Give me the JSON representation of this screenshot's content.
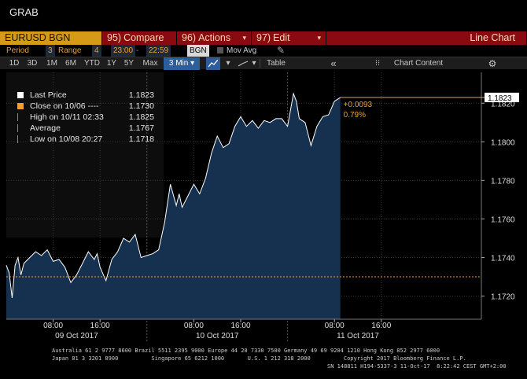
{
  "window": {
    "title": "GRAB"
  },
  "menubar": {
    "ticker": "EURUSD BGN Curncy",
    "compare": {
      "num": "95)",
      "label": "Compare"
    },
    "actions": {
      "num": "96)",
      "label": "Actions"
    },
    "edit": {
      "num": "97)",
      "label": "Edit"
    },
    "chart_type": "Line Chart"
  },
  "period_bar": {
    "period_label": "Period",
    "period_value": "3",
    "range_label": "Range",
    "range_value": "4",
    "start_time": "23:00",
    "end_time": "22:59",
    "source": "BGN",
    "mov_avg_label": "Mov Avg"
  },
  "toolbar": {
    "buttons": [
      "1D",
      "3D",
      "1M",
      "6M",
      "YTD",
      "1Y",
      "5Y",
      "Max"
    ],
    "interval": "3 Min",
    "table_label": "Table",
    "chart_content_label": "Chart Content",
    "collapse_glyph": "«",
    "gear_glyph": "⚙"
  },
  "legend": [
    {
      "label": "Last Price",
      "value": "1.1823",
      "color": "#ffffff"
    },
    {
      "label": "Close on 10/06 ----",
      "value": "1.1730",
      "color": "#f0a030"
    },
    {
      "label": "High on 10/11 02:33",
      "value": "1.1825",
      "color": "#888888"
    },
    {
      "label": "Average",
      "value": "1.1767",
      "color": "#888888"
    },
    {
      "label": "Low on 10/08 20:27",
      "value": "1.1718",
      "color": "#888888"
    }
  ],
  "annotation": {
    "change": "+0.0093",
    "pct": "0.79%"
  },
  "last_price_tag": "1.1823",
  "chart_data": {
    "type": "area",
    "ylim": [
      1.1708,
      1.1836
    ],
    "y_ticks": [
      "1.1720",
      "1.1740",
      "1.1760",
      "1.1780",
      "1.1800",
      "1.1820"
    ],
    "x_tick_labels": [
      "08:00",
      "16:00",
      "08:00",
      "16:00",
      "08:00",
      "16:00"
    ],
    "x_tick_hours": [
      8,
      16,
      32,
      40,
      56,
      64
    ],
    "day_labels": [
      {
        "label": "09 Oct 2017",
        "hour": 12
      },
      {
        "label": "10 Oct 2017",
        "hour": 36
      },
      {
        "label": "11 Oct 2017",
        "hour": 60
      }
    ],
    "reference_close": 1.173,
    "series": [
      {
        "name": "Last Price",
        "x_hours": [
          0,
          0.5,
          1,
          1.5,
          2,
          2.5,
          3,
          4,
          5,
          6,
          7,
          8,
          9,
          10,
          11,
          12,
          13,
          14,
          15,
          15.5,
          16,
          17,
          18,
          19,
          20,
          21,
          22,
          23,
          24,
          25,
          26,
          27,
          28,
          29,
          29.5,
          30,
          31,
          32,
          33,
          34,
          35,
          36,
          37,
          38,
          39,
          40,
          41,
          42,
          43,
          44,
          45,
          46,
          47,
          48,
          49,
          49.5,
          50,
          51,
          52,
          53,
          54,
          55,
          56,
          57
        ],
        "values": [
          1.1736,
          1.1732,
          1.1719,
          1.1736,
          1.174,
          1.1731,
          1.1737,
          1.174,
          1.1743,
          1.1741,
          1.1744,
          1.1738,
          1.1739,
          1.1735,
          1.1727,
          1.1731,
          1.1737,
          1.1743,
          1.1739,
          1.1742,
          1.1735,
          1.1728,
          1.1739,
          1.1743,
          1.175,
          1.1748,
          1.1752,
          1.174,
          1.1741,
          1.1742,
          1.1744,
          1.1758,
          1.1778,
          1.1767,
          1.1773,
          1.1766,
          1.1772,
          1.1778,
          1.1773,
          1.1781,
          1.1794,
          1.1803,
          1.1797,
          1.1799,
          1.1808,
          1.1813,
          1.1808,
          1.1811,
          1.1807,
          1.1811,
          1.181,
          1.1812,
          1.1812,
          1.1808,
          1.1825,
          1.1821,
          1.1812,
          1.181,
          1.1798,
          1.1808,
          1.1813,
          1.1814,
          1.1821,
          1.1823
        ]
      }
    ]
  },
  "footer": {
    "line1": "Australia 61 2 9777 8600 Brazil 5511 2395 9000 Europe 44 20 7330 7500 Germany 49 69 9204 1210 Hong Kong 852 2977 6000",
    "line2": "Japan 81 3 3201 8900          Singapore 65 6212 1000       U.S. 1 212 318 2000          Copyright 2017 Bloomberg Finance L.P.",
    "line3": "SN 148811 H194-5337-3 11-Oct-17  8:22:42 CEST GMT+2:00"
  }
}
